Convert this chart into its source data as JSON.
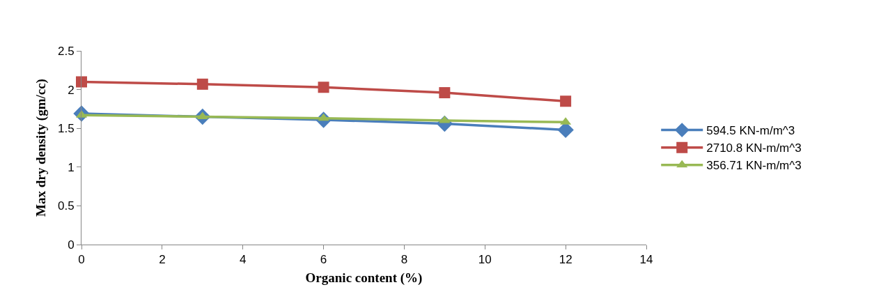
{
  "chart_data": {
    "type": "line",
    "xlabel": "Organic content (%)",
    "ylabel": "Max dry density (gm/cc)",
    "x": [
      0,
      3,
      6,
      9,
      12
    ],
    "series": [
      {
        "name": "594.5 KN-m/m^3",
        "color": "#4a7ebb",
        "marker": "diamond",
        "values": [
          1.69,
          1.65,
          1.61,
          1.56,
          1.48
        ]
      },
      {
        "name": "2710.8 KN-m/m^3",
        "color": "#be4b48",
        "marker": "square",
        "values": [
          2.1,
          2.07,
          2.03,
          1.96,
          1.85
        ]
      },
      {
        "name": "356.71 KN-m/m^3",
        "color": "#98b954",
        "marker": "triangle",
        "values": [
          1.67,
          1.65,
          1.63,
          1.6,
          1.58
        ]
      }
    ],
    "xlim": [
      0,
      14
    ],
    "xticks": [
      0,
      2,
      4,
      6,
      8,
      10,
      12,
      14
    ],
    "ylim": [
      0,
      2.5
    ],
    "yticks": [
      0,
      0.5,
      1,
      1.5,
      2,
      2.5
    ],
    "grid": false,
    "legend": "right",
    "line_style": "solid"
  }
}
